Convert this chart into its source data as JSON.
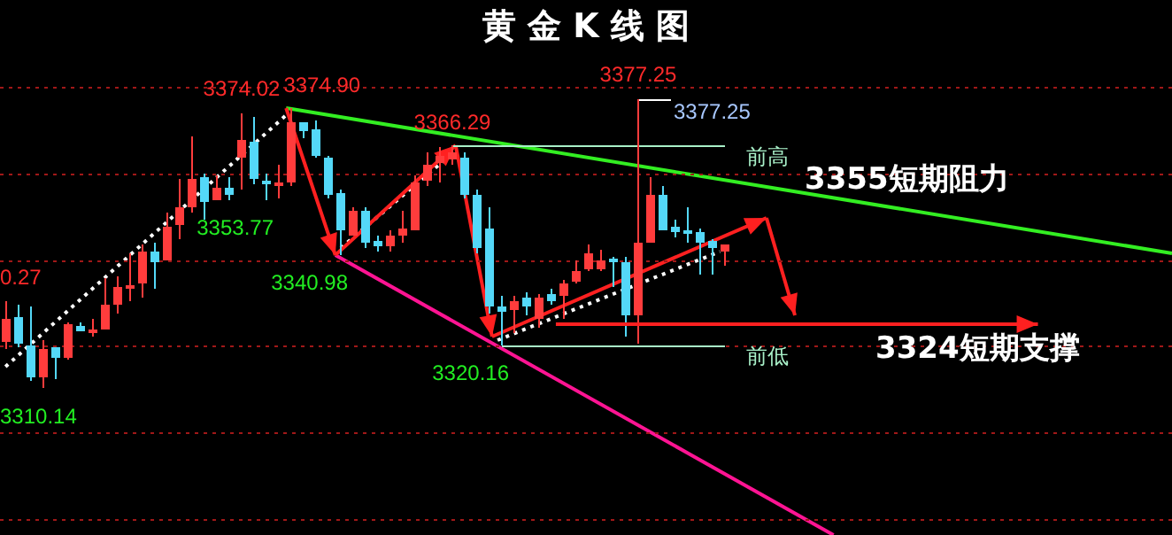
{
  "chart_data": {
    "type": "candlestick",
    "title": "黄 金 K 线 图",
    "categories": [
      null,
      null,
      null,
      null,
      null,
      null,
      null,
      null,
      null,
      null,
      null,
      null,
      null,
      null,
      null,
      null,
      null,
      null,
      null,
      null,
      null,
      null,
      null,
      null,
      null,
      null,
      null,
      null,
      null,
      null,
      null,
      null,
      null,
      null,
      null,
      null,
      null,
      null,
      null,
      null,
      null,
      null,
      null,
      null,
      null,
      null,
      null,
      null,
      null,
      null,
      null,
      null,
      null,
      null,
      null,
      null,
      null,
      null,
      null
    ],
    "ohlc": [
      [
        3321.0,
        3330.27,
        3319.3,
        3326.3
      ],
      [
        3326.7,
        3329.5,
        3319.8,
        3320.6
      ],
      [
        3320.2,
        3329.1,
        3312.0,
        3312.8
      ],
      [
        3312.8,
        3321.4,
        3310.14,
        3319.3
      ],
      [
        3319.8,
        3319.8,
        3312.4,
        3317.3
      ],
      [
        3317.3,
        3325.5,
        3316.9,
        3325.1
      ],
      [
        3324.7,
        3325.5,
        3323.4,
        3323.4
      ],
      [
        3323.4,
        3326.3,
        3322.2,
        3323.7
      ],
      [
        3323.8,
        3335.7,
        3323.8,
        3329.5
      ],
      [
        3329.5,
        3336.1,
        3327.5,
        3333.6
      ],
      [
        3333.6,
        3341.4,
        3330.4,
        3334.0
      ],
      [
        3334.4,
        3343.4,
        3331.2,
        3341.8
      ],
      [
        3341.8,
        3343.8,
        3333.2,
        3339.3
      ],
      [
        3339.7,
        3350.8,
        3339.7,
        3347.5
      ],
      [
        3347.9,
        3358.5,
        3344.6,
        3352.0
      ],
      [
        3352.0,
        3368.7,
        3350.8,
        3358.5
      ],
      [
        3358.9,
        3360.1,
        3349.1,
        3353.2
      ],
      [
        3353.6,
        3359.7,
        3353.6,
        3356.5
      ],
      [
        3356.5,
        3358.9,
        3353.6,
        3354.8
      ],
      [
        3363.8,
        3374.02,
        3356.1,
        3367.9
      ],
      [
        3367.5,
        3373.2,
        3357.3,
        3358.5
      ],
      [
        3358.1,
        3360.1,
        3353.77,
        3357.3
      ],
      [
        3357.3,
        3361.8,
        3354.0,
        3357.7
      ],
      [
        3357.7,
        3374.9,
        3356.9,
        3372.0
      ],
      [
        3372.0,
        3372.0,
        3368.0,
        3369.9
      ],
      [
        3370.3,
        3372.4,
        3363.8,
        3364.2
      ],
      [
        3363.8,
        3364.2,
        3354.0,
        3354.8
      ],
      [
        3355.3,
        3356.1,
        3340.98,
        3346.7
      ],
      [
        3345.5,
        3352.0,
        3345.5,
        3351.2
      ],
      [
        3351.2,
        3352.0,
        3342.6,
        3343.8
      ],
      [
        3344.2,
        3345.5,
        3341.8,
        3343.0
      ],
      [
        3343.0,
        3346.7,
        3341.8,
        3345.5
      ],
      [
        3345.5,
        3351.2,
        3343.8,
        3347.1
      ],
      [
        3346.7,
        3359.7,
        3346.7,
        3357.7
      ],
      [
        3358.1,
        3365.0,
        3356.9,
        3361.8
      ],
      [
        3362.2,
        3365.9,
        3357.7,
        3364.2
      ],
      [
        3363.0,
        3366.29,
        3362.0,
        3365.0
      ],
      [
        3363.8,
        3365.0,
        3354.0,
        3354.8
      ],
      [
        3354.8,
        3356.1,
        3341.4,
        3342.6
      ],
      [
        3347.1,
        3352.0,
        3327.5,
        3329.1
      ],
      [
        3329.1,
        3331.6,
        3320.16,
        3327.9
      ],
      [
        3328.3,
        3331.6,
        3323.0,
        3330.4
      ],
      [
        3331.2,
        3332.4,
        3327.1,
        3329.1
      ],
      [
        3326.3,
        3332.0,
        3324.3,
        3331.2
      ],
      [
        3332.0,
        3333.2,
        3329.5,
        3330.4
      ],
      [
        3331.6,
        3335.3,
        3326.3,
        3334.4
      ],
      [
        3334.8,
        3339.7,
        3334.4,
        3337.3
      ],
      [
        3337.7,
        3343.4,
        3337.3,
        3341.4
      ],
      [
        3337.7,
        3342.2,
        3337.3,
        3339.7
      ],
      [
        3340.1,
        3340.6,
        3333.6,
        3339.7
      ],
      [
        3339.3,
        3340.6,
        3322.2,
        3327.1
      ],
      [
        3327.1,
        3377.25,
        3320.5,
        3343.8
      ],
      [
        3343.8,
        3358.9,
        3343.8,
        3354.8
      ],
      [
        3354.8,
        3356.9,
        3346.7,
        3346.7
      ],
      [
        3347.5,
        3349.1,
        3345.0,
        3346.3
      ],
      [
        3346.7,
        3352.0,
        3343.8,
        3346.3
      ],
      [
        3346.3,
        3347.1,
        3336.5,
        3343.8
      ],
      [
        3344.2,
        3344.6,
        3336.5,
        3342.6
      ],
      [
        3341.8,
        3343.4,
        3338.5,
        3343.4
      ]
    ],
    "colors": [
      "#ff3c3c",
      "#54d8f8",
      "#54d8f8",
      "#ff3c3c",
      "#54d8f8",
      "#ff3c3c",
      "#54d8f8",
      "#ff3c3c",
      "#ff3c3c",
      "#ff3c3c",
      "#ff3c3c",
      "#ff3c3c",
      "#54d8f8",
      "#ff3c3c",
      "#ff3c3c",
      "#ff3c3c",
      "#54d8f8",
      "#ff3c3c",
      "#54d8f8",
      "#ff3c3c",
      "#54d8f8",
      "#54d8f8",
      "#ff3c3c",
      "#ff3c3c",
      "#54d8f8",
      "#54d8f8",
      "#54d8f8",
      "#54d8f8",
      "#ff3c3c",
      "#54d8f8",
      "#54d8f8",
      "#ff3c3c",
      "#ff3c3c",
      "#ff3c3c",
      "#ff3c3c",
      "#ff3c3c",
      "#ff3c3c",
      "#54d8f8",
      "#54d8f8",
      "#54d8f8",
      "#54d8f8",
      "#ff3c3c",
      "#54d8f8",
      "#ff3c3c",
      "#54d8f8",
      "#ff3c3c",
      "#ff3c3c",
      "#ff3c3c",
      "#ff3c3c",
      "#54d8f8",
      "#54d8f8",
      "#ff3c3c",
      "#ff3c3c",
      "#54d8f8",
      "#54d8f8",
      "#54d8f8",
      "#54d8f8",
      "#54d8f8",
      "#ff3c3c"
    ],
    "ref_lines": [
      {
        "axis": "y",
        "value": 3366.29,
        "label": "前高",
        "color": "#a8f0c8"
      },
      {
        "axis": "y",
        "value": 3320.16,
        "label": "前低",
        "color": "#a8f0c8"
      }
    ],
    "annotations": [
      "0.27",
      "3310.14",
      "3374.02",
      "3353.77",
      "3374.90",
      "3340.98",
      "3366.29",
      "3320.16",
      "3377.25",
      "3377.25",
      "3355短期阻力",
      "3324短期支撑"
    ],
    "yticks": [
      {
        "value": 3280,
        "label": null
      },
      {
        "value": 3300,
        "label": null
      },
      {
        "value": 3320,
        "label": null
      },
      {
        "value": 3340,
        "label": null
      },
      {
        "value": 3360,
        "label": null
      },
      {
        "value": 3380,
        "label": null
      }
    ],
    "grid": "y",
    "tick_labels": false
  }
}
